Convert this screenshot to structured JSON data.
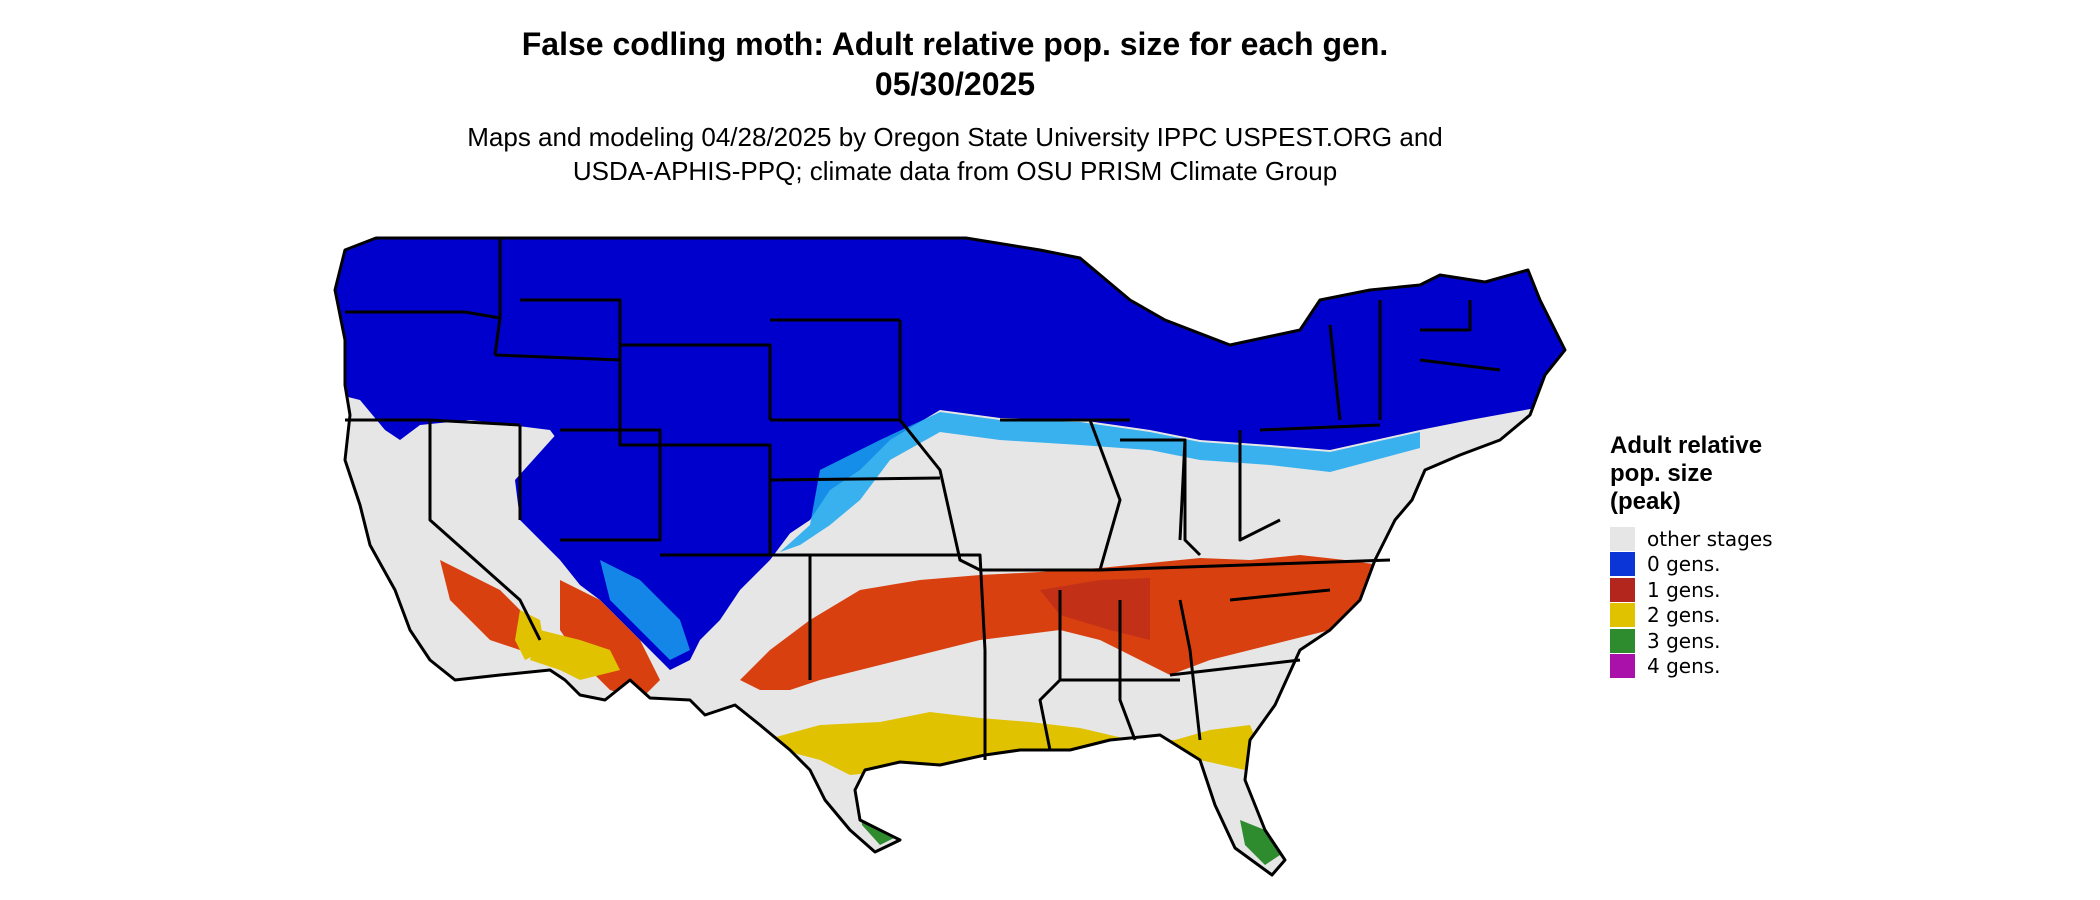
{
  "title_line1": "False codling moth: Adult relative pop. size for each gen.",
  "title_line2": "05/30/2025",
  "subtitle_line1": "Maps and modeling 04/28/2025 by Oregon State University IPPC USPEST.ORG and",
  "subtitle_line2": "USDA-APHIS-PPQ; climate data from OSU PRISM Climate Group",
  "legend": {
    "title_line1": "Adult relative",
    "title_line2": "pop. size",
    "title_line3": "(peak)",
    "items": [
      {
        "label": "other stages",
        "color": "#e6e6e6"
      },
      {
        "label": "0 gens.",
        "color": "#0b35d6"
      },
      {
        "label": "1 gens.",
        "color": "#b3261e"
      },
      {
        "label": "2 gens.",
        "color": "#e0c200"
      },
      {
        "label": "3 gens.",
        "color": "#2e8b2e"
      },
      {
        "label": "4 gens.",
        "color": "#aa11aa"
      }
    ]
  },
  "map_colors": {
    "background": "#e6e6e6",
    "zero_gen": "#0000cc",
    "zero_gen_light": "#19a7ee",
    "one_gen": "#d94010",
    "one_gen_dark": "#b3261e",
    "two_gen": "#e0c200",
    "three_gen": "#2e8b2e",
    "border": "#000000"
  }
}
